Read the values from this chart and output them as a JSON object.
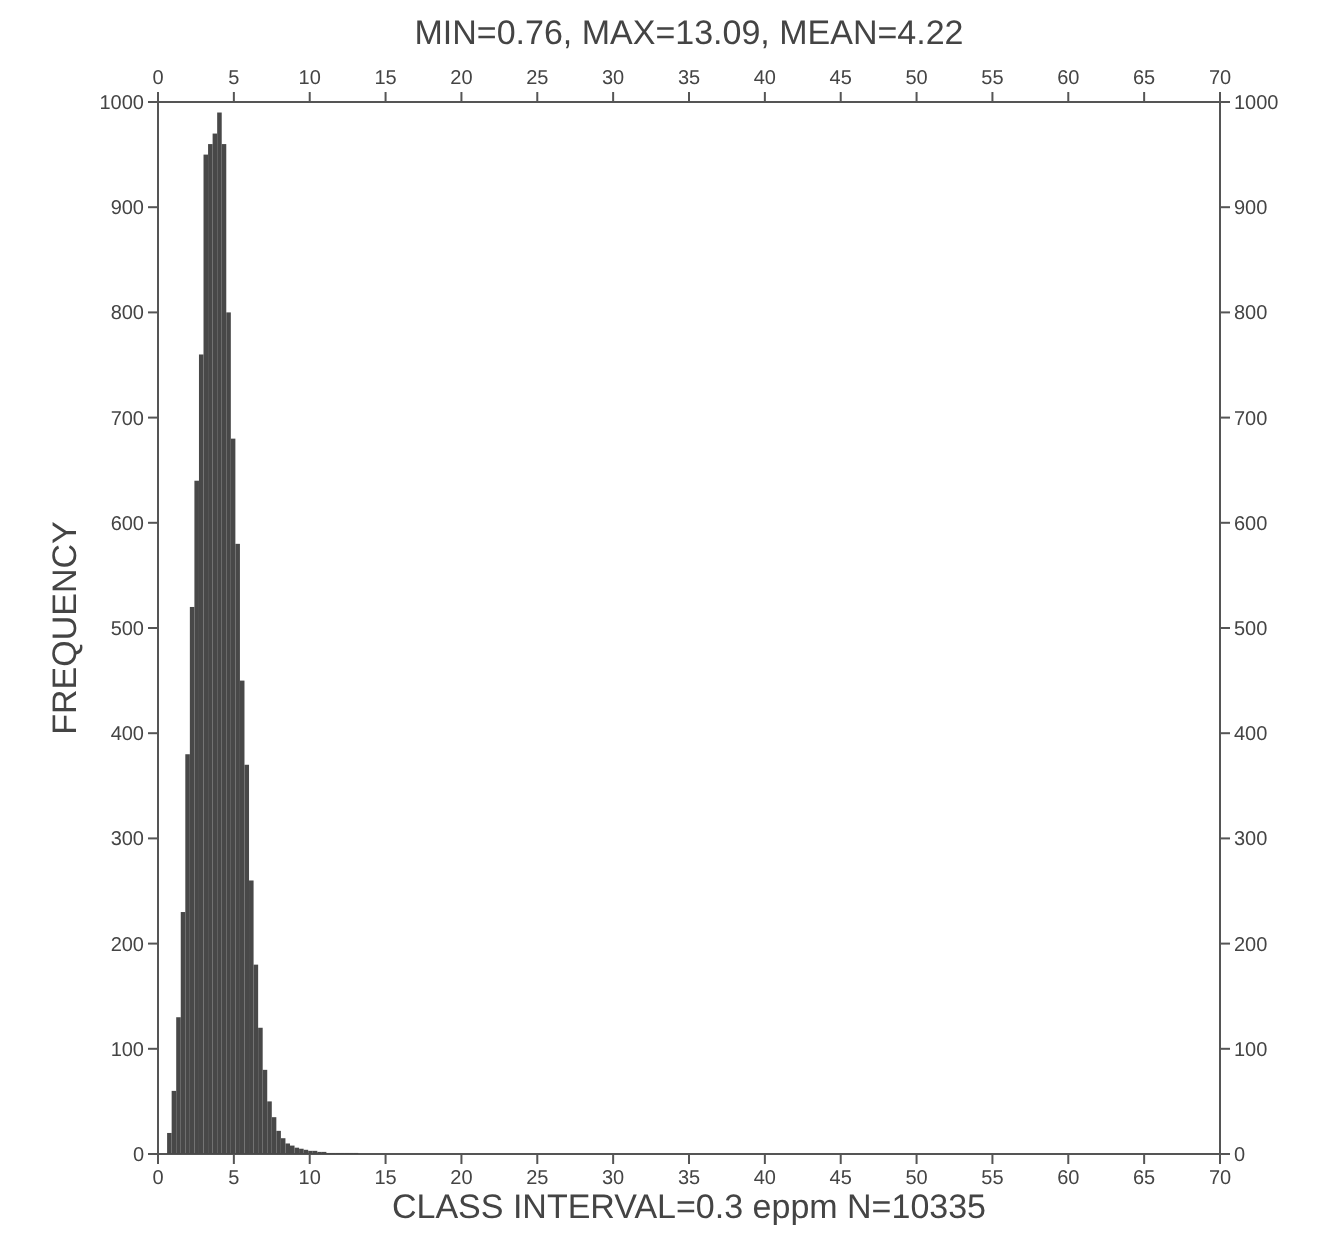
{
  "chart_data": {
    "type": "histogram",
    "title": "MIN=0.76, MAX=13.09, MEAN=4.22",
    "xlabel": "CLASS INTERVAL=0.3 eppm N=10335",
    "ylabel": "FREQUENCY",
    "color": "#484848",
    "bins": [
      0.6,
      0.9,
      1.2,
      1.5,
      1.8,
      2.1,
      2.4,
      2.7,
      3.0,
      3.3,
      3.6,
      3.9,
      4.2,
      4.5,
      4.8,
      5.1,
      5.4,
      5.7,
      6.0,
      6.3,
      6.6,
      6.9,
      7.2,
      7.5,
      7.8,
      8.1,
      8.4,
      8.7,
      9.0,
      9.3,
      9.6,
      9.9,
      10.2,
      10.5,
      10.8,
      11.1,
      11.4,
      11.7,
      12.0,
      12.3,
      12.6,
      12.9,
      13.2
    ],
    "values": [
      20,
      60,
      130,
      230,
      380,
      520,
      640,
      760,
      950,
      960,
      970,
      990,
      960,
      800,
      680,
      580,
      450,
      370,
      260,
      180,
      120,
      80,
      50,
      35,
      22,
      15,
      10,
      8,
      6,
      5,
      4,
      3,
      3,
      2,
      2,
      1,
      1,
      1,
      1,
      1,
      1,
      1
    ],
    "xlim": [
      0,
      70
    ],
    "xticks": [
      0,
      5,
      10,
      15,
      20,
      25,
      30,
      35,
      40,
      45,
      50,
      55,
      60,
      65,
      70
    ],
    "x2lim": [
      0,
      70
    ],
    "x2ticks": [
      0,
      5,
      10,
      15,
      20,
      25,
      30,
      35,
      40,
      45,
      50,
      55,
      60,
      65,
      70
    ],
    "ylim": [
      0,
      1000
    ],
    "yticks": [
      0,
      100,
      200,
      300,
      400,
      500,
      600,
      700,
      800,
      900,
      1000
    ],
    "y2lim": [
      0,
      1000
    ],
    "y2ticks": [
      0,
      100,
      200,
      300,
      400,
      500,
      600,
      700,
      800,
      900,
      1000
    ],
    "grid": false
  }
}
